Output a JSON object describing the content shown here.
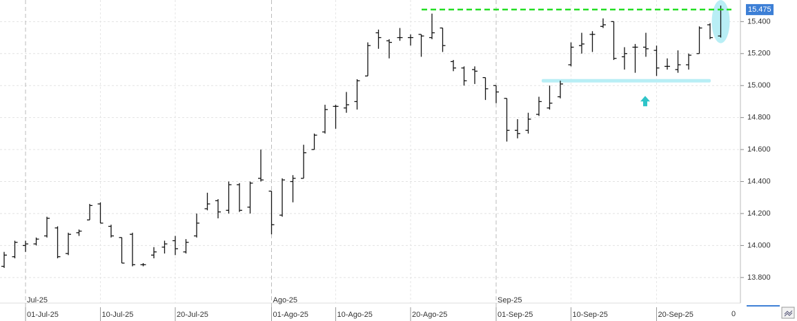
{
  "chart_data": {
    "type": "ohlc",
    "color": "#111111",
    "grid": true,
    "ylim": [
      13640,
      15535
    ],
    "yticks": [
      {
        "value": 13800,
        "label": "13.800"
      },
      {
        "value": 14000,
        "label": "14.000"
      },
      {
        "value": 14200,
        "label": "14.200"
      },
      {
        "value": 14400,
        "label": "14.400"
      },
      {
        "value": 14600,
        "label": "14.600"
      },
      {
        "value": 14800,
        "label": "14.800"
      },
      {
        "value": 15000,
        "label": "15.000"
      },
      {
        "value": 15200,
        "label": "15.200"
      },
      {
        "value": 15400,
        "label": "15.400"
      }
    ],
    "categories": [
      null,
      null,
      "01-Jul-25",
      null,
      null,
      null,
      null,
      null,
      null,
      "10-Jul-25",
      null,
      null,
      null,
      null,
      null,
      null,
      "20-Jul-25",
      null,
      null,
      null,
      null,
      null,
      null,
      null,
      null,
      "01-Ago-25",
      null,
      null,
      null,
      null,
      null,
      "10-Ago-25",
      null,
      null,
      null,
      null,
      null,
      null,
      "20-Ago-25",
      null,
      null,
      null,
      null,
      null,
      null,
      null,
      "01-Sep-25",
      null,
      null,
      null,
      null,
      null,
      null,
      "10-Sep-25",
      null,
      null,
      null,
      null,
      null,
      null,
      null,
      "20-Sep-25",
      null,
      null,
      null,
      null,
      null,
      null
    ],
    "month_categories": [
      null,
      null,
      "Jul-25",
      null,
      null,
      null,
      null,
      null,
      null,
      null,
      null,
      null,
      null,
      null,
      null,
      null,
      null,
      null,
      null,
      null,
      null,
      null,
      null,
      null,
      null,
      "Ago-25",
      null,
      null,
      null,
      null,
      null,
      null,
      null,
      null,
      null,
      null,
      null,
      null,
      null,
      null,
      null,
      null,
      null,
      null,
      null,
      null,
      "Sep-25",
      null,
      null,
      null,
      null,
      null,
      null,
      null,
      null,
      null,
      null,
      null,
      null,
      null,
      null,
      null,
      null,
      null,
      null,
      null,
      null,
      null
    ],
    "open": [
      13870,
      13930,
      14000,
      14010,
      14060,
      14110,
      13950,
      14080,
      14160,
      14260,
      14120,
      14050,
      14070,
      13880,
      13940,
      13990,
      14030,
      13960,
      14060,
      14230,
      14280,
      14220,
      14380,
      14240,
      14420,
      14340,
      14190,
      14400,
      14420,
      14600,
      14710,
      14870,
      14860,
      14900,
      15060,
      15330,
      15280,
      15300,
      15300,
      15320,
      15300,
      15360,
      15150,
      15110,
      15100,
      15050,
      15000,
      14920,
      14720,
      14720,
      14820,
      14860,
      14930,
      15130,
      15250,
      15320,
      15370,
      15400,
      15180,
      15240,
      15240,
      15220,
      15120,
      15100,
      15130,
      15200,
      15380,
      15310
    ],
    "high": [
      13960,
      14030,
      14030,
      14050,
      14180,
      14120,
      14080,
      14100,
      14260,
      14270,
      14130,
      14050,
      14080,
      13890,
      13990,
      14030,
      14060,
      14040,
      14200,
      14330,
      14290,
      14400,
      14390,
      14400,
      14600,
      14340,
      14420,
      14440,
      14630,
      14700,
      14880,
      14880,
      14960,
      15040,
      15270,
      15350,
      15290,
      15360,
      15320,
      15320,
      15450,
      15360,
      15160,
      15120,
      15120,
      15050,
      15000,
      14920,
      14790,
      14830,
      14930,
      15000,
      15030,
      15270,
      15330,
      15340,
      15420,
      15400,
      15240,
      15260,
      15330,
      15250,
      15170,
      15220,
      15200,
      15370,
      15390,
      15500
    ],
    "low": [
      13860,
      13920,
      13960,
      14000,
      14050,
      13920,
      13940,
      14060,
      14160,
      14140,
      14050,
      13890,
      13870,
      13870,
      13920,
      13950,
      13940,
      13950,
      14050,
      14220,
      14170,
      14200,
      14210,
      14200,
      14400,
      14070,
      14180,
      14270,
      14420,
      14600,
      14700,
      14730,
      14830,
      14850,
      15060,
      15230,
      15170,
      15280,
      15250,
      15180,
      15290,
      15210,
      15090,
      15000,
      15010,
      14910,
      14890,
      14650,
      14670,
      14700,
      14810,
      14850,
      14920,
      15120,
      15200,
      15210,
      15360,
      15160,
      15100,
      15080,
      15180,
      15060,
      15100,
      15080,
      15100,
      15200,
      15290,
      15300
    ],
    "close": [
      13940,
      14020,
      14010,
      14040,
      14170,
      13930,
      14070,
      14090,
      14250,
      14140,
      14060,
      13890,
      13880,
      13880,
      13960,
      14010,
      13980,
      14020,
      14140,
      14260,
      14210,
      14380,
      14220,
      14390,
      14410,
      14130,
      14410,
      14420,
      14580,
      14690,
      14850,
      14870,
      14880,
      15030,
      15250,
      15300,
      15270,
      15300,
      15300,
      15310,
      15330,
      15250,
      15110,
      15030,
      15090,
      14980,
      14960,
      14720,
      14700,
      14790,
      14900,
      14890,
      15010,
      15240,
      15260,
      15320,
      15380,
      15170,
      15200,
      15240,
      15230,
      15110,
      15120,
      15130,
      15190,
      15360,
      15300,
      15475
    ],
    "resistance_level": 15475,
    "resistance_color": "#22dd22",
    "support_level": 15030,
    "highlight_color": "#b8eef5",
    "last_price_label": {
      "value": 15475,
      "label": "15.475"
    },
    "last_price_color": "#3d7fd6",
    "x_axis_corner_label": "0"
  }
}
